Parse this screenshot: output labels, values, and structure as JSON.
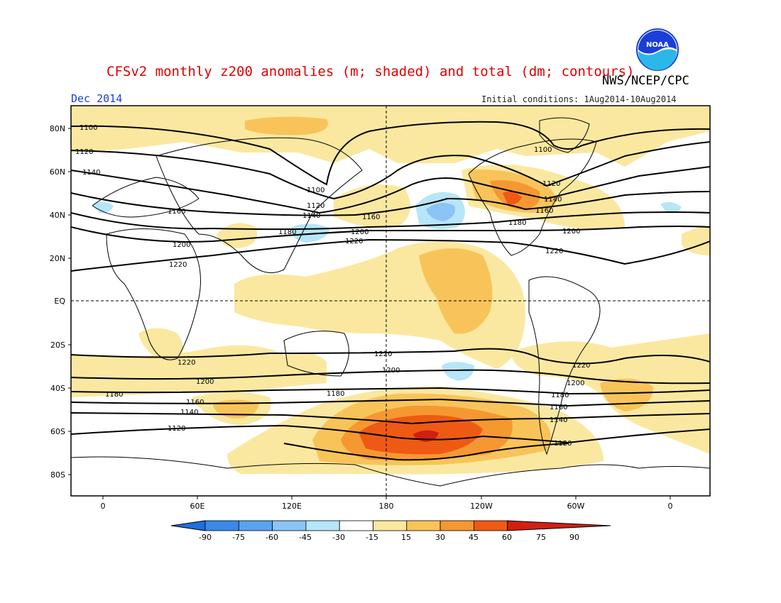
{
  "header": {
    "title": "CFSv2 monthly z200 anomalies (m; shaded) and total (dm; contours)",
    "agency": "NWS/NCEP/CPC",
    "valid_month": "Dec 2014",
    "initial_conditions": "Initial conditions: 1Aug2014-10Aug2014",
    "logo_text": "NOAA"
  },
  "map": {
    "lat_labels": [
      "80N",
      "60N",
      "40N",
      "20N",
      "EQ",
      "20S",
      "40S",
      "60S",
      "80S"
    ],
    "lon_labels": [
      "0",
      "60E",
      "120E",
      "180",
      "120W",
      "60W",
      "0"
    ],
    "contour_labels": [
      "1100",
      "1120",
      "1140",
      "1160",
      "1180",
      "1200",
      "1220"
    ]
  },
  "colorbar": {
    "labels": [
      "-90",
      "-75",
      "-60",
      "-45",
      "-30",
      "-15",
      "15",
      "30",
      "45",
      "60",
      "75",
      "90"
    ],
    "colors": [
      "#1e6fe0",
      "#3a8ae6",
      "#5aa3ee",
      "#8cc4f6",
      "#b6e6f8",
      "#ffffff",
      "#fbe8a0",
      "#f8c45a",
      "#f59832",
      "#ee5a14",
      "#d22010"
    ]
  }
}
